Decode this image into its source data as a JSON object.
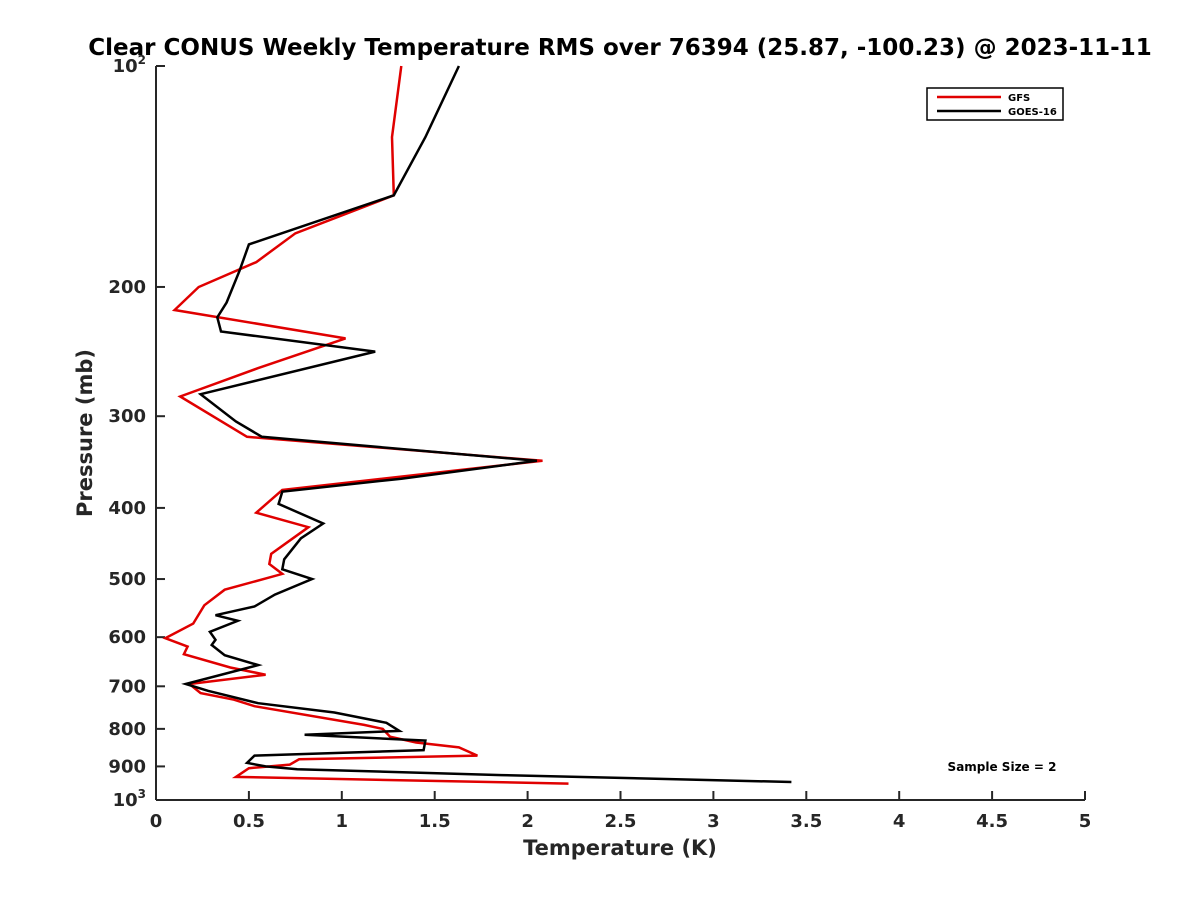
{
  "chart_data": {
    "type": "line",
    "title": "Clear CONUS Weekly Temperature RMS over 76394 (25.87, -100.23) @ 2023-11-11",
    "xlabel": "Temperature (K)",
    "ylabel": "Pressure (mb)",
    "xlim": [
      0,
      5
    ],
    "ylim": [
      100,
      1000
    ],
    "y_scale": "log",
    "y_reversed": true,
    "x_ticks": [
      "0",
      "0.5",
      "1",
      "1.5",
      "2",
      "2.5",
      "3",
      "3.5",
      "4",
      "4.5",
      "5"
    ],
    "y_ticks": [
      {
        "base": "10",
        "exp": "2",
        "value": 100
      },
      {
        "label": "200",
        "value": 200
      },
      {
        "label": "300",
        "value": 300
      },
      {
        "label": "400",
        "value": 400
      },
      {
        "label": "500",
        "value": 500
      },
      {
        "label": "600",
        "value": 600
      },
      {
        "label": "700",
        "value": 700
      },
      {
        "label": "800",
        "value": 800
      },
      {
        "label": "900",
        "value": 900
      },
      {
        "base": "10",
        "exp": "3",
        "value": 1000
      }
    ],
    "grid": false,
    "legend_position": "top-right",
    "series": [
      {
        "name": "GFS",
        "color": "#e00000",
        "points": [
          [
            1.32,
            100
          ],
          [
            1.27,
            125
          ],
          [
            1.28,
            150
          ],
          [
            0.75,
            169
          ],
          [
            0.54,
            185
          ],
          [
            0.23,
            200
          ],
          [
            0.1,
            215
          ],
          [
            1.02,
            235
          ],
          [
            0.55,
            258
          ],
          [
            0.13,
            282
          ],
          [
            0.49,
            320
          ],
          [
            2.08,
            345
          ],
          [
            0.68,
            378
          ],
          [
            0.54,
            406
          ],
          [
            0.82,
            425
          ],
          [
            0.62,
            462
          ],
          [
            0.61,
            477
          ],
          [
            0.68,
            492
          ],
          [
            0.37,
            517
          ],
          [
            0.26,
            543
          ],
          [
            0.2,
            575
          ],
          [
            0.05,
            602
          ],
          [
            0.17,
            618
          ],
          [
            0.15,
            633
          ],
          [
            0.4,
            660
          ],
          [
            0.59,
            675
          ],
          [
            0.18,
            695
          ],
          [
            0.24,
            715
          ],
          [
            0.42,
            730
          ],
          [
            0.53,
            745
          ],
          [
            1.12,
            790
          ],
          [
            1.22,
            800
          ],
          [
            1.26,
            820
          ],
          [
            1.4,
            835
          ],
          [
            1.63,
            848
          ],
          [
            1.73,
            870
          ],
          [
            0.77,
            880
          ],
          [
            0.72,
            895
          ],
          [
            0.5,
            905
          ],
          [
            0.43,
            930
          ],
          [
            2.22,
            950
          ]
        ]
      },
      {
        "name": "GOES-16",
        "color": "#000000",
        "points": [
          [
            1.63,
            100
          ],
          [
            1.45,
            125
          ],
          [
            1.28,
            150
          ],
          [
            0.5,
            175
          ],
          [
            0.45,
            190
          ],
          [
            0.38,
            210
          ],
          [
            0.33,
            220
          ],
          [
            0.35,
            230
          ],
          [
            1.18,
            245
          ],
          [
            0.24,
            280
          ],
          [
            0.43,
            305
          ],
          [
            0.57,
            320
          ],
          [
            2.05,
            345
          ],
          [
            1.32,
            365
          ],
          [
            0.68,
            380
          ],
          [
            0.66,
            395
          ],
          [
            0.9,
            420
          ],
          [
            0.78,
            440
          ],
          [
            0.69,
            470
          ],
          [
            0.68,
            485
          ],
          [
            0.84,
            500
          ],
          [
            0.64,
            525
          ],
          [
            0.53,
            545
          ],
          [
            0.32,
            560
          ],
          [
            0.44,
            570
          ],
          [
            0.29,
            590
          ],
          [
            0.32,
            605
          ],
          [
            0.3,
            615
          ],
          [
            0.37,
            635
          ],
          [
            0.55,
            655
          ],
          [
            0.16,
            695
          ],
          [
            0.28,
            710
          ],
          [
            0.55,
            738
          ],
          [
            0.96,
            760
          ],
          [
            1.24,
            785
          ],
          [
            1.31,
            805
          ],
          [
            0.8,
            815
          ],
          [
            1.45,
            830
          ],
          [
            1.44,
            855
          ],
          [
            0.53,
            870
          ],
          [
            0.49,
            890
          ],
          [
            0.59,
            900
          ],
          [
            0.76,
            908
          ],
          [
            1.86,
            925
          ],
          [
            3.42,
            945
          ]
        ]
      }
    ],
    "annotation": "Sample Size = 2"
  }
}
